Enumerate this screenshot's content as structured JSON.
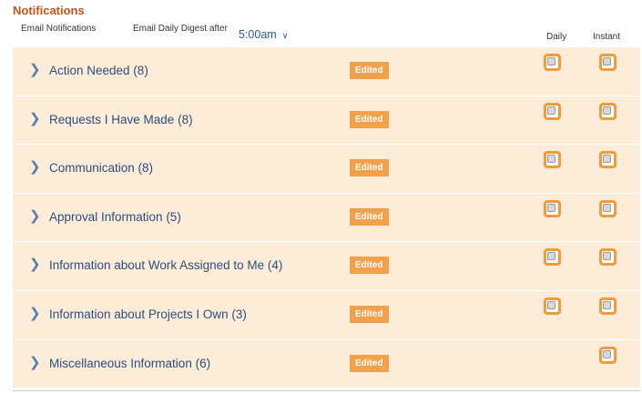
{
  "title": "Notifications",
  "email_notifications_label": "Email Notifications",
  "digest_label": "Email Daily Digest after",
  "digest_time": "5:00am",
  "columns": {
    "daily": "Daily",
    "instant": "Instant"
  },
  "badge_label": "Edited",
  "colors": {
    "accent": "#f39a3a",
    "title": "#c0561c",
    "row_bg": "#fdecd8",
    "link": "#2a4e7f"
  },
  "rows": [
    {
      "name": "Action Needed (8)",
      "daily": false,
      "instant": false
    },
    {
      "name": "Requests I Have Made (8)",
      "daily": false,
      "instant": false
    },
    {
      "name": "Communication (8)",
      "daily": false,
      "instant": false
    },
    {
      "name": "Approval Information (5)",
      "daily": false,
      "instant": false
    },
    {
      "name": "Information about Work Assigned to Me (4)",
      "daily": false,
      "instant": false
    },
    {
      "name": "Information about Projects I Own (3)",
      "daily": false,
      "instant": false
    },
    {
      "name": "Miscellaneous Information (6)",
      "daily": null,
      "instant": false
    }
  ]
}
